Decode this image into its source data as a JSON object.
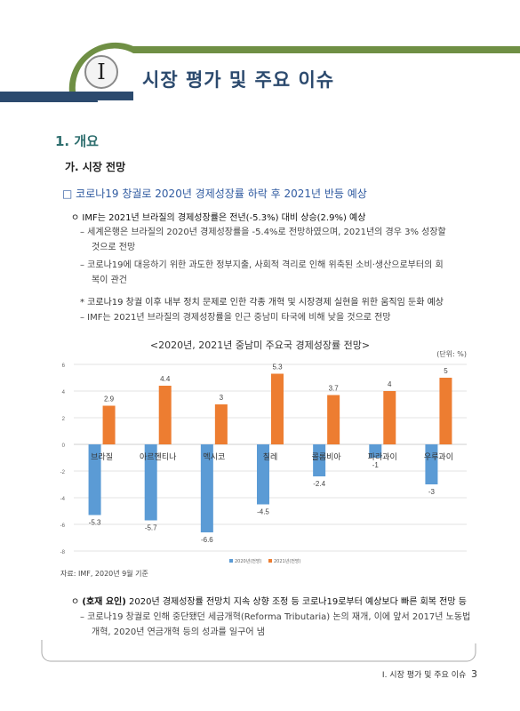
{
  "header": {
    "roman": "I",
    "chapter_title": "시장 평가 및 주요 이슈",
    "colors": {
      "green": "#6f8f44",
      "navy": "#2c4a6e"
    }
  },
  "section": {
    "title": "1. 개요",
    "subtitle": "가. 시장 전망",
    "box_title": "□ 코로나19 창궐로 2020년 경제성장률 하락 후 2021년 반등 예상"
  },
  "para1": {
    "bullet": "ㅇ IMF는 2021년 브라질의 경제성장률은 전년(-5.3%) 대비 상승(2.9%) 예상",
    "dash1_line1": "– 세계은행은 브라질의 2020년 경제성장률을 -5.4%로 전망하였으며, 2021년의 경우 3% 성장할",
    "dash1_line2": "것으로 전망",
    "dash2_line1": "– 코로나19에 대응하기 위한 과도한 정부지출, 사회적 격리로 인해 위축된 소비·생산으로부터의 회",
    "dash2_line2": "복이 관건",
    "star": "* 코로나19 창궐 이후 내부 정치 문제로 인한 각종 개혁 및 시장경제 실현을 위한 움직임 둔화 예상",
    "dash3": "– IMF는 2021년 브라질의 경제성장률을 인근 중남미 타국에 비해 낮을 것으로 전망"
  },
  "chart_title": "<2020년, 2021년 중남미 주요국 경제성장률 전망>",
  "chart_unit": "(단위: %)",
  "chart_data": {
    "type": "bar",
    "categories": [
      "브라질",
      "아르헨티나",
      "멕시코",
      "칠레",
      "콜롬비아",
      "파라과이",
      "우루과이"
    ],
    "series": [
      {
        "name": "2020년(전망)",
        "values": [
          -5.3,
          -5.7,
          -6.6,
          -4.5,
          -2.4,
          -1,
          -3
        ],
        "color": "#5b9bd5"
      },
      {
        "name": "2021년(전망)",
        "values": [
          2.9,
          4.4,
          3,
          5.3,
          3.7,
          4,
          5
        ],
        "color": "#ed7d31"
      }
    ],
    "yticks": [
      6,
      4,
      2,
      0,
      -2,
      -4,
      -6,
      -8
    ],
    "ylim": [
      -8,
      6
    ],
    "legend": "bottom"
  },
  "source": "자료: IMF, 2020년 9월 기준",
  "para2": {
    "bullet_prefix": "ㅇ ",
    "bullet_bold": "(호재 요인)",
    "bullet_rest": " 2020년 경제성장률 전망치 지속 상향 조정 등 코로나19로부터 예상보다 빠른 회복 전망 등",
    "dash_line1": "– 코로나19 창궐로 인해 중단됐던 세금개혁(Reforma Tributaria) 논의 재개, 이에 앞서 2017년 노동법",
    "dash_line2": "개혁, 2020년 연금개혁 등의 성과를 일구어 냄"
  },
  "footer": {
    "text": "Ⅰ. 시장 평가 및 주요 이슈",
    "page": "3"
  }
}
